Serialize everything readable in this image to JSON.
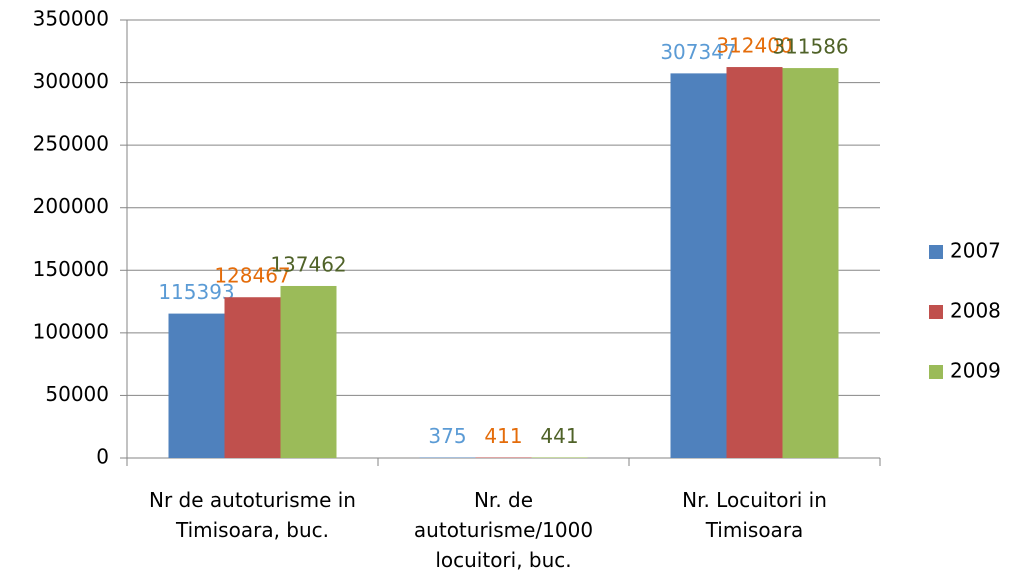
{
  "chart_data": {
    "type": "bar",
    "categories": [
      "Nr de autoturisme in Timisoara, buc.",
      "Nr. de autoturisme/1000 locuitori, buc.",
      "Nr. Locuitori in Timisoara"
    ],
    "series": [
      {
        "name": "2007",
        "color": "#4f81bd",
        "label_color": "#5b9bd5",
        "values": [
          115393,
          375,
          307347
        ]
      },
      {
        "name": "2008",
        "color": "#c0504d",
        "label_color": "#e46c0a",
        "values": [
          128467,
          411,
          312400
        ]
      },
      {
        "name": "2009",
        "color": "#9bbb59",
        "label_color": "#4f6228",
        "values": [
          137462,
          441,
          311586
        ]
      }
    ],
    "ylim": [
      0,
      350000
    ],
    "yticks": [
      0,
      50000,
      100000,
      150000,
      200000,
      250000,
      300000,
      350000
    ],
    "grid": true,
    "legend": "right"
  }
}
